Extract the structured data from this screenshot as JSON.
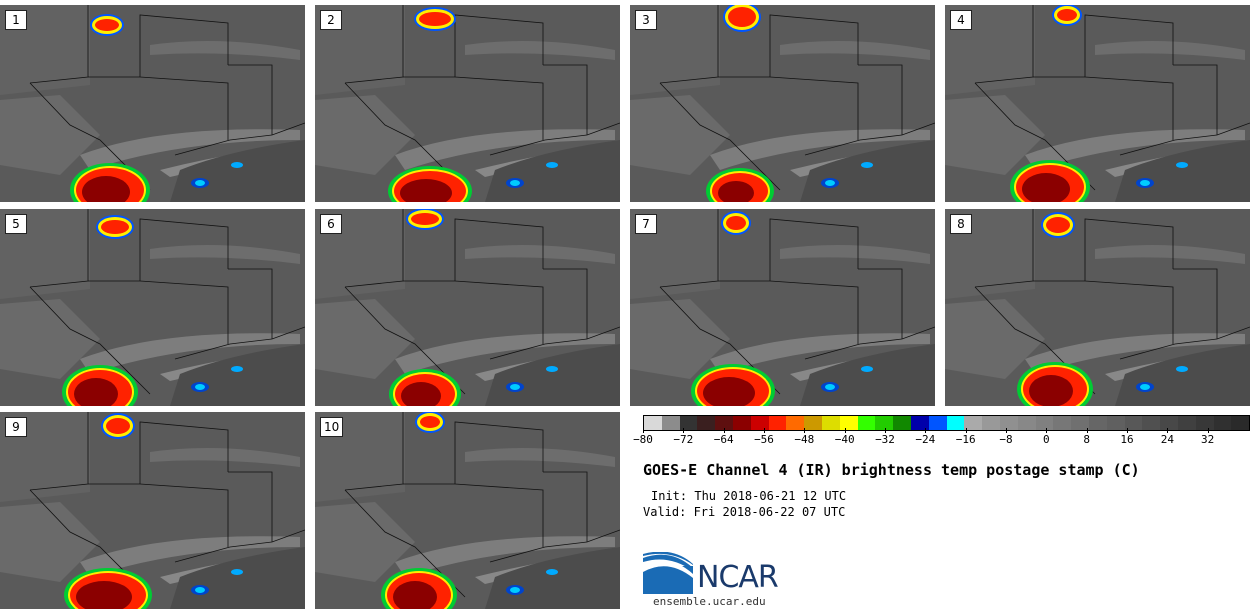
{
  "panels": [
    {
      "label": "1"
    },
    {
      "label": "2"
    },
    {
      "label": "3"
    },
    {
      "label": "4"
    },
    {
      "label": "5"
    },
    {
      "label": "6"
    },
    {
      "label": "7"
    },
    {
      "label": "8"
    },
    {
      "label": "9"
    },
    {
      "label": "10"
    }
  ],
  "colorbar": {
    "colors": [
      "#d9d9d9",
      "#8c8c8c",
      "#333333",
      "#3a1f1f",
      "#5e0f0f",
      "#8b0000",
      "#cc0000",
      "#ff2200",
      "#ff6a00",
      "#cc9900",
      "#dddd00",
      "#ffff00",
      "#33ff00",
      "#22cc00",
      "#118800",
      "#0000aa",
      "#0055ff",
      "#00ffff",
      "#aaaaaa",
      "#999999",
      "#909090",
      "#888888",
      "#808080",
      "#777777",
      "#707070",
      "#666666",
      "#606060",
      "#585858",
      "#505050",
      "#484848",
      "#404040",
      "#383838",
      "#303030",
      "#2a2a2a"
    ],
    "min": -80,
    "max": 40,
    "ticks": [
      "−80",
      "−72",
      "−64",
      "−56",
      "−48",
      "−40",
      "−32",
      "−24",
      "−16",
      "−8",
      "0",
      "8",
      "16",
      "24",
      "32"
    ]
  },
  "title": "GOES-E Channel 4 (IR) brightness temp postage stamp (C)",
  "init": "Init: Thu 2018-06-21 12 UTC",
  "valid": "Valid: Fri 2018-06-22 07 UTC",
  "logo": {
    "text": "NCAR",
    "url": "ensemble.ucar.edu",
    "colors": [
      "#1a6bb5",
      "#1a3a6b"
    ]
  }
}
